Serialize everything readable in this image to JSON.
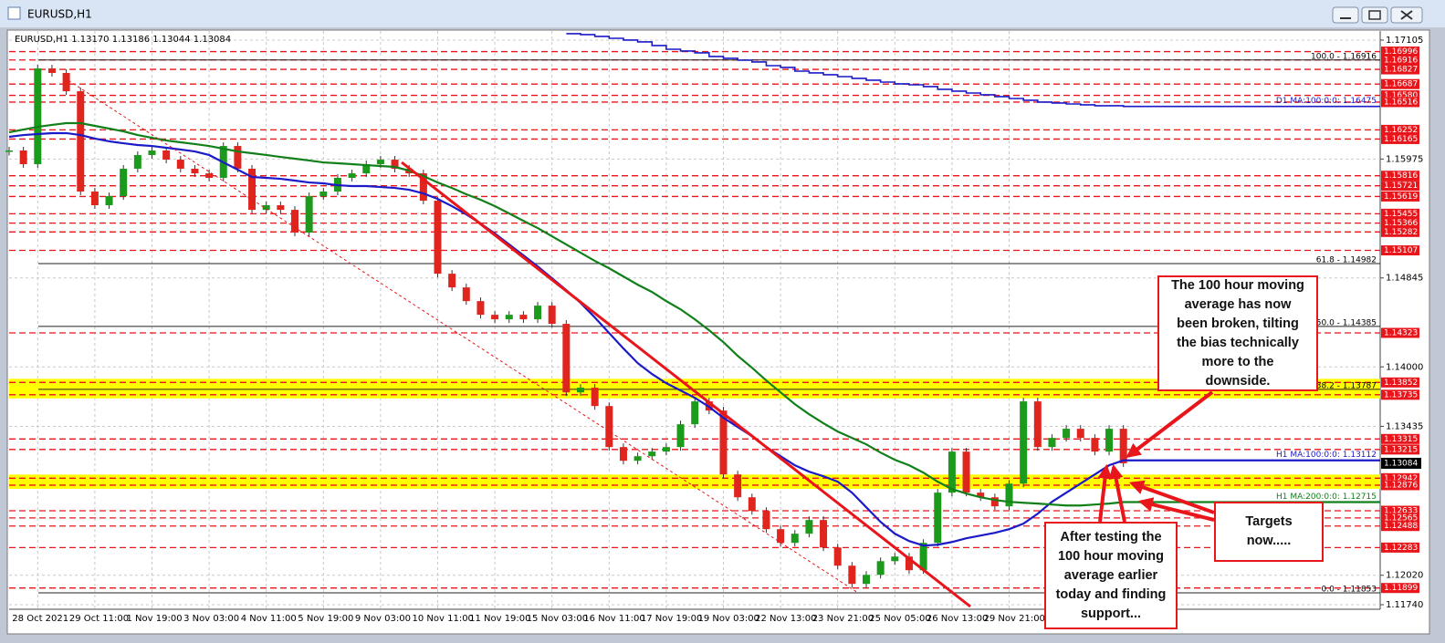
{
  "window": {
    "title": "EURUSD,H1"
  },
  "chart_data": {
    "type": "line",
    "header": "EURUSD,H1  1.13170 1.13186 1.13044 1.13084",
    "categories": [
      null,
      null,
      "28 Oct 2021",
      null,
      null,
      null,
      "29 Oct 11:00",
      null,
      null,
      null,
      "1 Nov 19:00",
      null,
      null,
      null,
      "3 Nov 03:00",
      null,
      null,
      null,
      "4 Nov 11:00",
      null,
      null,
      null,
      "5 Nov 19:00",
      null,
      null,
      null,
      "9 Nov 03:00",
      null,
      null,
      null,
      "10 Nov 11:00",
      null,
      null,
      null,
      "11 Nov 19:00",
      null,
      null,
      null,
      "15 Nov 03:00",
      null,
      null,
      null,
      "16 Nov 11:00",
      null,
      null,
      null,
      "17 Nov 19:00",
      null,
      null,
      null,
      "19 Nov 03:00",
      null,
      null,
      null,
      "22 Nov 13:00",
      null,
      null,
      null,
      "23 Nov 21:00",
      null,
      null,
      null,
      "25 Nov 05:00",
      null,
      null,
      null,
      "26 Nov 13:00",
      null,
      null,
      null,
      "29 Nov 21:00",
      null,
      null,
      null,
      null,
      null,
      null,
      null,
      null
    ],
    "series": [
      {
        "style": "candles",
        "up_color": "#1c9a1c",
        "down_color": "#e0241e",
        "values": [
          1.16056,
          1.15926,
          1.16836,
          1.16793,
          1.16619,
          1.15666,
          1.15536,
          1.15622,
          1.15883,
          1.16013,
          1.16056,
          1.15969,
          1.15883,
          1.15839,
          1.15796,
          1.16099,
          1.15883,
          1.15492,
          1.15536,
          1.15492,
          1.15276,
          1.15622,
          1.15666,
          1.15796,
          1.15839,
          1.15926,
          1.15969,
          1.15883,
          1.15839,
          1.15579,
          1.14885,
          1.14755,
          1.14625,
          1.14495,
          1.14452,
          1.14495,
          1.14452,
          1.14582,
          1.14409,
          1.13758,
          1.13802,
          1.13628,
          1.13238,
          1.13108,
          1.13151,
          1.13195,
          1.13238,
          1.13455,
          1.13672,
          1.13585,
          1.12978,
          1.12761,
          1.12631,
          1.12458,
          1.12328,
          1.12415,
          1.12545,
          1.12284,
          1.12111,
          1.11938,
          1.12024,
          1.12154,
          1.12198,
          1.12068,
          1.12328,
          1.12805,
          1.13195,
          1.12805,
          1.12761,
          1.12675,
          1.12891,
          1.13672,
          1.13238,
          1.13325,
          1.13412,
          1.13325,
          1.13195,
          1.13412,
          1.13084
        ]
      },
      {
        "name": "H1 MA:100:0:0: 1.13112",
        "style": "line",
        "color": "#1a1ac8",
        "values": [
          1.16186,
          1.16203,
          1.16212,
          1.16221,
          1.16221,
          1.16203,
          1.16169,
          1.16143,
          1.16125,
          1.16108,
          1.16099,
          1.16082,
          1.16065,
          1.16047,
          1.16013,
          1.15943,
          1.15874,
          1.15804,
          1.15796,
          1.15787,
          1.1577,
          1.15752,
          1.15744,
          1.15726,
          1.15718,
          1.15718,
          1.15709,
          1.157,
          1.15683,
          1.15648,
          1.15596,
          1.15527,
          1.15449,
          1.15362,
          1.15267,
          1.15163,
          1.15059,
          1.14955,
          1.14842,
          1.14729,
          1.14608,
          1.14469,
          1.14322,
          1.14175,
          1.14036,
          1.13932,
          1.13845,
          1.13776,
          1.13706,
          1.1362,
          1.13516,
          1.13429,
          1.13342,
          1.13238,
          1.13151,
          1.13065,
          1.13004,
          1.12961,
          1.12909,
          1.12805,
          1.12666,
          1.12527,
          1.12415,
          1.12345,
          1.12302,
          1.1231,
          1.12336,
          1.12371,
          1.12397,
          1.12423,
          1.12458,
          1.1251,
          1.12605,
          1.12718,
          1.12805,
          1.12891,
          1.12978,
          1.13065,
          1.13112
        ]
      },
      {
        "name": "H1 MA:200:0:0: 1.12715",
        "style": "line",
        "color": "#12801a",
        "values": [
          1.16229,
          1.16255,
          1.16281,
          1.16299,
          1.16316,
          1.16316,
          1.1629,
          1.16264,
          1.16238,
          1.16203,
          1.16177,
          1.16151,
          1.16134,
          1.16117,
          1.16099,
          1.16073,
          1.16047,
          1.1603,
          1.16013,
          1.15995,
          1.15978,
          1.15961,
          1.15943,
          1.15935,
          1.15926,
          1.15917,
          1.15909,
          1.159,
          1.15865,
          1.15813,
          1.15752,
          1.157,
          1.1564,
          1.15588,
          1.15527,
          1.15458,
          1.15388,
          1.15319,
          1.15241,
          1.15163,
          1.15085,
          1.15007,
          1.14937,
          1.14859,
          1.14781,
          1.14712,
          1.14625,
          1.14547,
          1.14452,
          1.14348,
          1.14235,
          1.14105,
          1.13992,
          1.13871,
          1.13758,
          1.13646,
          1.1355,
          1.13464,
          1.13386,
          1.13325,
          1.13264,
          1.13186,
          1.13117,
          1.13065,
          1.12995,
          1.12909,
          1.12839,
          1.12796,
          1.12761,
          1.12735,
          1.12718,
          1.12709,
          1.12701,
          1.12692,
          1.12683,
          1.12683,
          1.12692,
          1.12701,
          1.12715
        ]
      },
      {
        "name": "D1 MA:100:0:0: 1.16475",
        "style": "step",
        "color": "#1a1ac8",
        "values": [
          null,
          null,
          null,
          null,
          null,
          null,
          null,
          null,
          null,
          null,
          null,
          null,
          null,
          null,
          null,
          null,
          null,
          null,
          null,
          null,
          null,
          null,
          null,
          null,
          null,
          null,
          null,
          null,
          null,
          null,
          null,
          null,
          null,
          null,
          null,
          null,
          null,
          null,
          null,
          1.17166,
          1.17157,
          1.1714,
          1.17122,
          1.17105,
          1.17088,
          1.17053,
          1.17018,
          1.17001,
          1.16984,
          1.16949,
          1.16932,
          1.16914,
          1.16897,
          1.16862,
          1.16845,
          1.1681,
          1.16793,
          1.16776,
          1.16758,
          1.16741,
          1.16724,
          1.16706,
          1.16689,
          1.1668,
          1.16663,
          1.16637,
          1.1662,
          1.16602,
          1.16585,
          1.16568,
          1.1655,
          1.16533,
          1.16516,
          1.16507,
          1.16498,
          1.1649,
          1.16481,
          1.16481,
          1.16475
        ]
      }
    ],
    "ylim": [
      1.11697,
      1.17174
    ],
    "yticks": [
      1.17105,
      1.15975,
      1.14845,
      {
        "value": 1.14,
        "label": "1.14000"
      },
      1.13435,
      {
        "value": 1.1202,
        "label": "1.12020"
      },
      {
        "value": 1.1174,
        "label": "1.11740"
      }
    ],
    "grid": true,
    "level_color": "#e8151b",
    "levels": [
      1.16996,
      1.16916,
      1.16827,
      1.16687,
      {
        "value": 1.1658,
        "label": "1.16580"
      },
      1.16516,
      1.16252,
      1.16165,
      1.15816,
      1.15721,
      1.15619,
      1.15455,
      1.15366,
      1.15282,
      1.15107,
      1.14323,
      1.13852,
      1.13735,
      1.13315,
      1.13215,
      1.12942,
      1.12876,
      1.12633,
      1.12565,
      1.12488,
      1.12283,
      1.11899
    ],
    "zones": [
      {
        "from": 1.13735,
        "to": 1.13852,
        "color": "#ffff00"
      },
      {
        "from": 1.12876,
        "to": 1.12942,
        "color": "#ffff00"
      }
    ],
    "fib": [
      {
        "value": 1.16916,
        "label": "100.0 - 1.16916"
      },
      {
        "value": 1.14982,
        "label": "61.8 - 1.14982"
      },
      {
        "value": 1.14385,
        "label": "50.0 - 1.14385"
      },
      {
        "value": 1.13787,
        "label": "38.2 - 1.13787"
      },
      {
        "value": 1.11853,
        "label": "0.0 - 1.11853"
      }
    ],
    "current_price": 1.13084
  },
  "annotations": [
    "The 100 hour moving average has now been broken, tilting the bias technically more to the downside.",
    "Targets now.....",
    "After testing the 100 hour moving average earlier today and finding support..."
  ]
}
